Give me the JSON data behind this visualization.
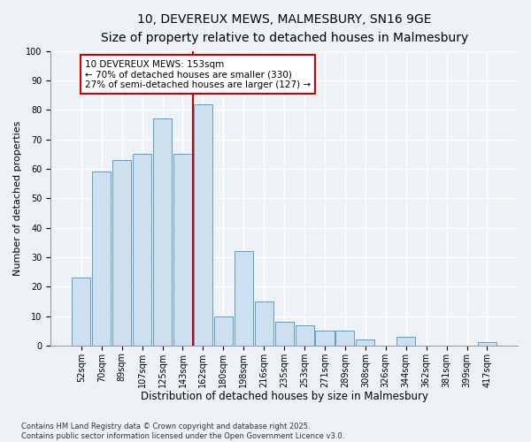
{
  "title_line1": "10, DEVEREUX MEWS, MALMESBURY, SN16 9GE",
  "title_line2": "Size of property relative to detached houses in Malmesbury",
  "xlabel": "Distribution of detached houses by size in Malmesbury",
  "ylabel": "Number of detached properties",
  "footer": "Contains HM Land Registry data © Crown copyright and database right 2025.\nContains public sector information licensed under the Open Government Licence v3.0.",
  "bar_labels": [
    "52sqm",
    "70sqm",
    "89sqm",
    "107sqm",
    "125sqm",
    "143sqm",
    "162sqm",
    "180sqm",
    "198sqm",
    "216sqm",
    "235sqm",
    "253sqm",
    "271sqm",
    "289sqm",
    "308sqm",
    "326sqm",
    "344sqm",
    "362sqm",
    "381sqm",
    "399sqm",
    "417sqm"
  ],
  "bar_values": [
    23,
    59,
    63,
    65,
    77,
    65,
    82,
    10,
    32,
    15,
    8,
    7,
    5,
    5,
    2,
    0,
    3,
    0,
    0,
    0,
    1
  ],
  "bar_color": "#cce0f0",
  "bar_edge_color": "#5a9ec8",
  "red_line_x": 6.0,
  "annotation_text": "10 DEVEREUX MEWS: 153sqm\n← 70% of detached houses are smaller (330)\n27% of semi-detached houses are larger (127) →",
  "annotation_box_color": "#ffffff",
  "annotation_border_color": "#cc0000",
  "ylim": [
    0,
    100
  ],
  "background_color": "#eef2f7",
  "plot_background": "#eef2f7",
  "grid_color": "#ffffff",
  "title_fontsize": 10,
  "subtitle_fontsize": 9,
  "xlabel_fontsize": 8.5,
  "ylabel_fontsize": 8,
  "tick_fontsize": 7,
  "annotation_fontsize": 7.5,
  "footer_fontsize": 6
}
